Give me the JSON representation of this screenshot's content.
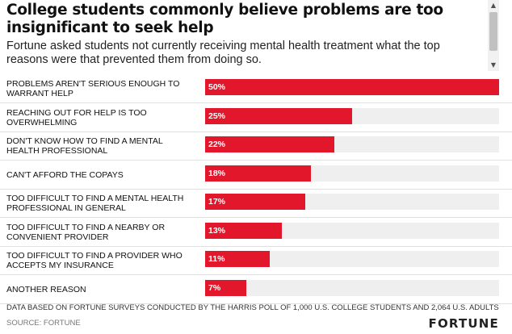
{
  "chart_data": {
    "type": "bar",
    "orientation": "horizontal",
    "title": "College students commonly believe problems are too insignificant to seek help",
    "subtitle": "Fortune asked students not currently receiving mental health treatment what the top reasons were that prevented them from doing so.",
    "categories": [
      "Problems aren't serious enough to warrant help",
      "Reaching out for help is too overwhelming",
      "Don't know how to find a mental health professional",
      "Can't afford the copays",
      "Too difficult to find a mental health professional in general",
      "Too difficult to find a nearby or convenient provider",
      "Too difficult to find a provider who accepts my insurance",
      "Another reason"
    ],
    "values": [
      50,
      25,
      22,
      18,
      17,
      13,
      11,
      7
    ],
    "value_labels": [
      "50%",
      "25%",
      "22%",
      "18%",
      "17%",
      "13%",
      "11%",
      "7%"
    ],
    "xlim": [
      0,
      50
    ],
    "bar_color": "#e3172c",
    "track_color": "#efefef",
    "footnote": "Data based on Fortune surveys conducted by The Harris Poll of 1,000 U.S. college students and 2,064 U.S. adults",
    "source": "Source: Fortune"
  },
  "brand": "FORTUNE",
  "scrollbar": {
    "up_icon": "▲",
    "down_icon": "▼"
  }
}
